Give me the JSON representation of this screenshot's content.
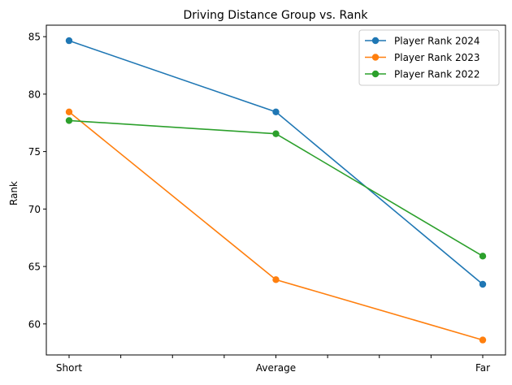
{
  "chart_data": {
    "type": "line",
    "title": "Driving Distance Group vs. Rank",
    "xlabel": "",
    "ylabel": "Rank",
    "categories": [
      "Short",
      "Average",
      "Far"
    ],
    "ylim": [
      57.3,
      86.0
    ],
    "yticks": [
      60,
      65,
      70,
      75,
      80,
      85
    ],
    "grid": false,
    "legend_position": "top-right",
    "series": [
      {
        "name": "Player Rank 2024",
        "color": "#1f77b4",
        "values": [
          84.65,
          78.45,
          63.45
        ]
      },
      {
        "name": "Player Rank 2023",
        "color": "#ff7f0e",
        "values": [
          78.45,
          63.85,
          58.6
        ]
      },
      {
        "name": "Player Rank 2022",
        "color": "#2ca02c",
        "values": [
          77.7,
          76.55,
          65.9
        ]
      }
    ]
  }
}
